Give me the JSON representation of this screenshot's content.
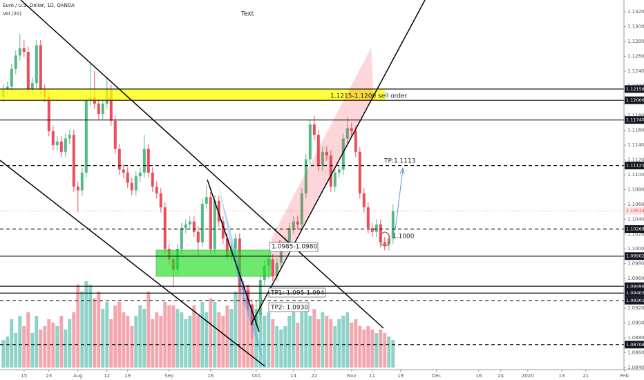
{
  "header": {
    "symbol": "Euro / U.S. Dollar, 1D, OANDA",
    "volume": "Vol (20)"
  },
  "chart_data": {
    "type": "candlestick",
    "up_color": "#53b987",
    "down_color": "#eb4d5c",
    "volume_up_color": "#8fd3c8",
    "volume_down_color": "#f4a6ae",
    "candles": [
      [
        1.1205,
        1.1222,
        1.1198,
        1.1215
      ],
      [
        1.1215,
        1.1226,
        1.1208,
        1.1219
      ],
      [
        1.1219,
        1.125,
        1.1212,
        1.1243
      ],
      [
        1.1243,
        1.1268,
        1.1236,
        1.1261
      ],
      [
        1.1261,
        1.129,
        1.1254,
        1.1271
      ],
      [
        1.1271,
        1.1282,
        1.1259,
        1.1266
      ],
      [
        1.1266,
        1.1273,
        1.1208,
        1.1215
      ],
      [
        1.1215,
        1.1231,
        1.1208,
        1.1224
      ],
      [
        1.1224,
        1.1282,
        1.1217,
        1.1275
      ],
      [
        1.1275,
        1.1282,
        1.1208,
        1.1215
      ],
      [
        1.1215,
        1.1222,
        1.1198,
        1.1205
      ],
      [
        1.1205,
        1.1212,
        1.1152,
        1.1159
      ],
      [
        1.1159,
        1.1166,
        1.1133,
        1.114
      ],
      [
        1.114,
        1.1152,
        1.1133,
        1.1145
      ],
      [
        1.1145,
        1.1152,
        1.1124,
        1.1131
      ],
      [
        1.1131,
        1.1156,
        1.1124,
        1.1149
      ],
      [
        1.1149,
        1.1161,
        1.1142,
        1.1154
      ],
      [
        1.1154,
        1.1161,
        1.1077,
        1.1084
      ],
      [
        1.1084,
        1.1091,
        1.105,
        1.1079
      ],
      [
        1.1079,
        1.111,
        1.1072,
        1.1103
      ],
      [
        1.1103,
        1.1208,
        1.1096,
        1.1201
      ],
      [
        1.1201,
        1.125,
        1.1194,
        1.1205
      ],
      [
        1.1205,
        1.124,
        1.1189,
        1.1196
      ],
      [
        1.1196,
        1.1203,
        1.1175,
        1.1182
      ],
      [
        1.1182,
        1.1203,
        1.1175,
        1.1196
      ],
      [
        1.1196,
        1.1232,
        1.1189,
        1.1215
      ],
      [
        1.1215,
        1.1222,
        1.1166,
        1.1173
      ],
      [
        1.1173,
        1.118,
        1.1128,
        1.1135
      ],
      [
        1.1135,
        1.1142,
        1.11,
        1.1107
      ],
      [
        1.1107,
        1.1114,
        1.1096,
        1.1103
      ],
      [
        1.1103,
        1.111,
        1.1082,
        1.1089
      ],
      [
        1.1089,
        1.1096,
        1.1072,
        1.1079
      ],
      [
        1.1079,
        1.1105,
        1.1072,
        1.1098
      ],
      [
        1.1098,
        1.111,
        1.1091,
        1.1103
      ],
      [
        1.1103,
        1.1154,
        1.1096,
        1.1135
      ],
      [
        1.1135,
        1.1142,
        1.1096,
        1.1103
      ],
      [
        1.1103,
        1.111,
        1.1077,
        1.1084
      ],
      [
        1.1084,
        1.1091,
        1.1068,
        1.1075
      ],
      [
        1.1075,
        1.1082,
        1.1049,
        1.1056
      ],
      [
        1.1056,
        1.1063,
        1.0993,
        1.1
      ],
      [
        1.1,
        1.1007,
        1.0979,
        1.0986
      ],
      [
        1.0986,
        1.0993,
        1.095,
        1.0972
      ],
      [
        1.0972,
        1.1007,
        1.0965,
        1.1
      ],
      [
        1.1,
        1.1035,
        1.0993,
        1.1028
      ],
      [
        1.1028,
        1.104,
        1.1021,
        1.1033
      ],
      [
        1.1033,
        1.1044,
        1.1026,
        1.1037
      ],
      [
        1.1037,
        1.1044,
        1.1016,
        1.1023
      ],
      [
        1.1023,
        1.103,
        1.099,
        1.1009
      ],
      [
        1.1009,
        1.1068,
        1.1002,
        1.1061
      ],
      [
        1.1061,
        1.1085,
        1.1054,
        1.107
      ],
      [
        1.107,
        1.1077,
        1.0993,
        1.1
      ],
      [
        1.1,
        1.1072,
        1.0993,
        1.1065
      ],
      [
        1.1065,
        1.1072,
        1.103,
        1.1037
      ],
      [
        1.1037,
        1.1044,
        1.1007,
        1.1014
      ],
      [
        1.1014,
        1.1021,
        1.0984,
        1.0991
      ],
      [
        1.0991,
        1.1007,
        1.0984,
        1.1
      ],
      [
        1.1,
        1.1021,
        1.0993,
        1.1014
      ],
      [
        1.1014,
        1.1021,
        1.0942,
        1.0949
      ],
      [
        1.0949,
        1.0956,
        1.093,
        1.0944
      ],
      [
        1.0944,
        1.0951,
        1.0918,
        1.0925
      ],
      [
        1.0925,
        1.0932,
        1.088,
        1.0897
      ],
      [
        1.0897,
        1.093,
        1.089,
        1.0911
      ],
      [
        1.0911,
        1.0965,
        1.0904,
        1.0958
      ],
      [
        1.0958,
        1.0984,
        1.0951,
        1.0977
      ],
      [
        1.0977,
        1.0993,
        1.096,
        1.0986
      ],
      [
        1.0986,
        1.0993,
        1.0956,
        1.0963
      ],
      [
        1.0963,
        1.0988,
        1.0956,
        1.0981
      ],
      [
        1.0981,
        1.1012,
        1.0974,
        1.1005
      ],
      [
        1.1005,
        1.1016,
        1.0998,
        1.1009
      ],
      [
        1.1009,
        1.1035,
        1.1002,
        1.1028
      ],
      [
        1.1028,
        1.1044,
        1.1021,
        1.1037
      ],
      [
        1.1037,
        1.1044,
        1.1026,
        1.1033
      ],
      [
        1.1033,
        1.1082,
        1.1026,
        1.1075
      ],
      [
        1.1075,
        1.1128,
        1.1068,
        1.1121
      ],
      [
        1.1121,
        1.1175,
        1.1114,
        1.1168
      ],
      [
        1.1168,
        1.118,
        1.1147,
        1.1154
      ],
      [
        1.1154,
        1.1161,
        1.1105,
        1.1112
      ],
      [
        1.1112,
        1.1138,
        1.1105,
        1.1131
      ],
      [
        1.1131,
        1.1138,
        1.1119,
        1.1126
      ],
      [
        1.1126,
        1.1133,
        1.1077,
        1.1084
      ],
      [
        1.1084,
        1.111,
        1.1077,
        1.1103
      ],
      [
        1.1103,
        1.1114,
        1.1096,
        1.1107
      ],
      [
        1.1107,
        1.1156,
        1.11,
        1.1149
      ],
      [
        1.1149,
        1.1178,
        1.1142,
        1.1163
      ],
      [
        1.1163,
        1.117,
        1.1152,
        1.1159
      ],
      [
        1.1159,
        1.1166,
        1.1124,
        1.1131
      ],
      [
        1.1131,
        1.1138,
        1.1068,
        1.1075
      ],
      [
        1.1075,
        1.1082,
        1.1049,
        1.1056
      ],
      [
        1.1056,
        1.1063,
        1.1021,
        1.1028
      ],
      [
        1.1028,
        1.1035,
        1.1016,
        1.1023
      ],
      [
        1.1023,
        1.104,
        1.1016,
        1.1033
      ],
      [
        1.1033,
        1.104,
        1.1002,
        1.1009
      ],
      [
        1.1009,
        1.1016,
        1.0998,
        1.1005
      ],
      [
        1.1005,
        1.1021,
        1.0998,
        1.1014
      ],
      [
        1.1014,
        1.106,
        1.1007,
        1.1051
      ]
    ],
    "volume": [
      40,
      45,
      70,
      50,
      75,
      60,
      80,
      50,
      75,
      55,
      60,
      70,
      65,
      60,
      75,
      55,
      70,
      80,
      120,
      110,
      125,
      120,
      100,
      110,
      85,
      95,
      70,
      90,
      95,
      80,
      75,
      60,
      75,
      90,
      85,
      110,
      70,
      80,
      75,
      95,
      90,
      90,
      85,
      80,
      70,
      75,
      90,
      75,
      95,
      80,
      100,
      95,
      80,
      75,
      90,
      85,
      110,
      130,
      100,
      120,
      90,
      85,
      80,
      75,
      80,
      70,
      60,
      55,
      60,
      75,
      80,
      65,
      80,
      90,
      75,
      85,
      70,
      80,
      75,
      70,
      60,
      70,
      75,
      80,
      65,
      70,
      60,
      55,
      60,
      55,
      50,
      55,
      50,
      45,
      40
    ],
    "xlim": [
      -0.8,
      149.7
    ],
    "xticks": [
      {
        "value": 5,
        "label": "15"
      },
      {
        "value": 11,
        "label": "23"
      },
      {
        "value": 18,
        "label": "Aug"
      },
      {
        "value": 25,
        "label": "12"
      },
      {
        "value": 30,
        "label": "19"
      },
      {
        "value": 40,
        "label": "Sep"
      },
      {
        "value": 50,
        "label": "16"
      },
      {
        "value": 61,
        "label": "Oct"
      },
      {
        "value": 70,
        "label": "14"
      },
      {
        "value": 75,
        "label": "22"
      },
      {
        "value": 84,
        "label": "Nov"
      },
      {
        "value": 89,
        "label": "11"
      },
      {
        "value": 95.8,
        "label": "19"
      },
      {
        "value": 104.5,
        "label": "Dec"
      },
      {
        "value": 114.7,
        "label": "16"
      },
      {
        "value": 120,
        "label": "24"
      },
      {
        "value": 126.5,
        "label": "2020"
      },
      {
        "value": 134.7,
        "label": "13"
      },
      {
        "value": 140.5,
        "label": "21"
      },
      {
        "value": 149.8,
        "label": "Feb"
      }
    ],
    "ylim": [
      1.0823,
      1.1336
    ],
    "yticks": [
      {
        "value": 1.084,
        "label": "1.08400"
      },
      {
        "value": 1.086,
        "label": "1.08600"
      },
      {
        "value": 1.088,
        "label": "1.08800"
      },
      {
        "value": 1.09,
        "label": "1.09000"
      },
      {
        "value": 1.092,
        "label": "1.09200"
      },
      {
        "value": 1.094,
        "label": "1.09400"
      },
      {
        "value": 1.096,
        "label": "1.09600"
      },
      {
        "value": 1.098,
        "label": "1.09800"
      },
      {
        "value": 1.1,
        "label": "1.10000"
      },
      {
        "value": 1.102,
        "label": "1.10200"
      },
      {
        "value": 1.104,
        "label": "1.10400"
      },
      {
        "value": 1.106,
        "label": "1.10600"
      },
      {
        "value": 1.108,
        "label": "1.10800"
      },
      {
        "value": 1.11,
        "label": "1.11000"
      },
      {
        "value": 1.112,
        "label": "1.11200"
      },
      {
        "value": 1.114,
        "label": "1.11400"
      },
      {
        "value": 1.116,
        "label": "1.11600"
      },
      {
        "value": 1.118,
        "label": "1.11800"
      },
      {
        "value": 1.12,
        "label": "1.12000"
      },
      {
        "value": 1.122,
        "label": "1.12200"
      },
      {
        "value": 1.124,
        "label": "1.12400"
      },
      {
        "value": 1.126,
        "label": "1.12600"
      },
      {
        "value": 1.128,
        "label": "1.12800"
      },
      {
        "value": 1.13,
        "label": "1.13000"
      },
      {
        "value": 1.132,
        "label": "1.13200"
      }
    ],
    "levels": [
      {
        "value": 1.12158,
        "line": "solid"
      },
      {
        "value": 1.12006,
        "line": "solid"
      },
      {
        "value": 1.1174,
        "label": "1.11740",
        "line": "solid"
      },
      {
        "value": 1.11125,
        "line": "dashed"
      },
      {
        "value": 1.10268,
        "line": "dashed"
      },
      {
        "value": 1.09902,
        "line": "solid"
      },
      {
        "value": 1.09496,
        "line": "solid"
      },
      {
        "value": 1.09403,
        "line": "solid"
      },
      {
        "value": 1.09301,
        "line": "dashed"
      },
      {
        "value": 1.08708,
        "line": "dashed"
      }
    ],
    "last_price": 1.10514,
    "annotations": [
      "Text",
      "1.1215-1.1200 sell order",
      "TP:1.1113",
      "1.1000",
      "1.0985-1.0980",
      "TP1: 1.095-1.094",
      "TP2: 1.0930"
    ]
  }
}
